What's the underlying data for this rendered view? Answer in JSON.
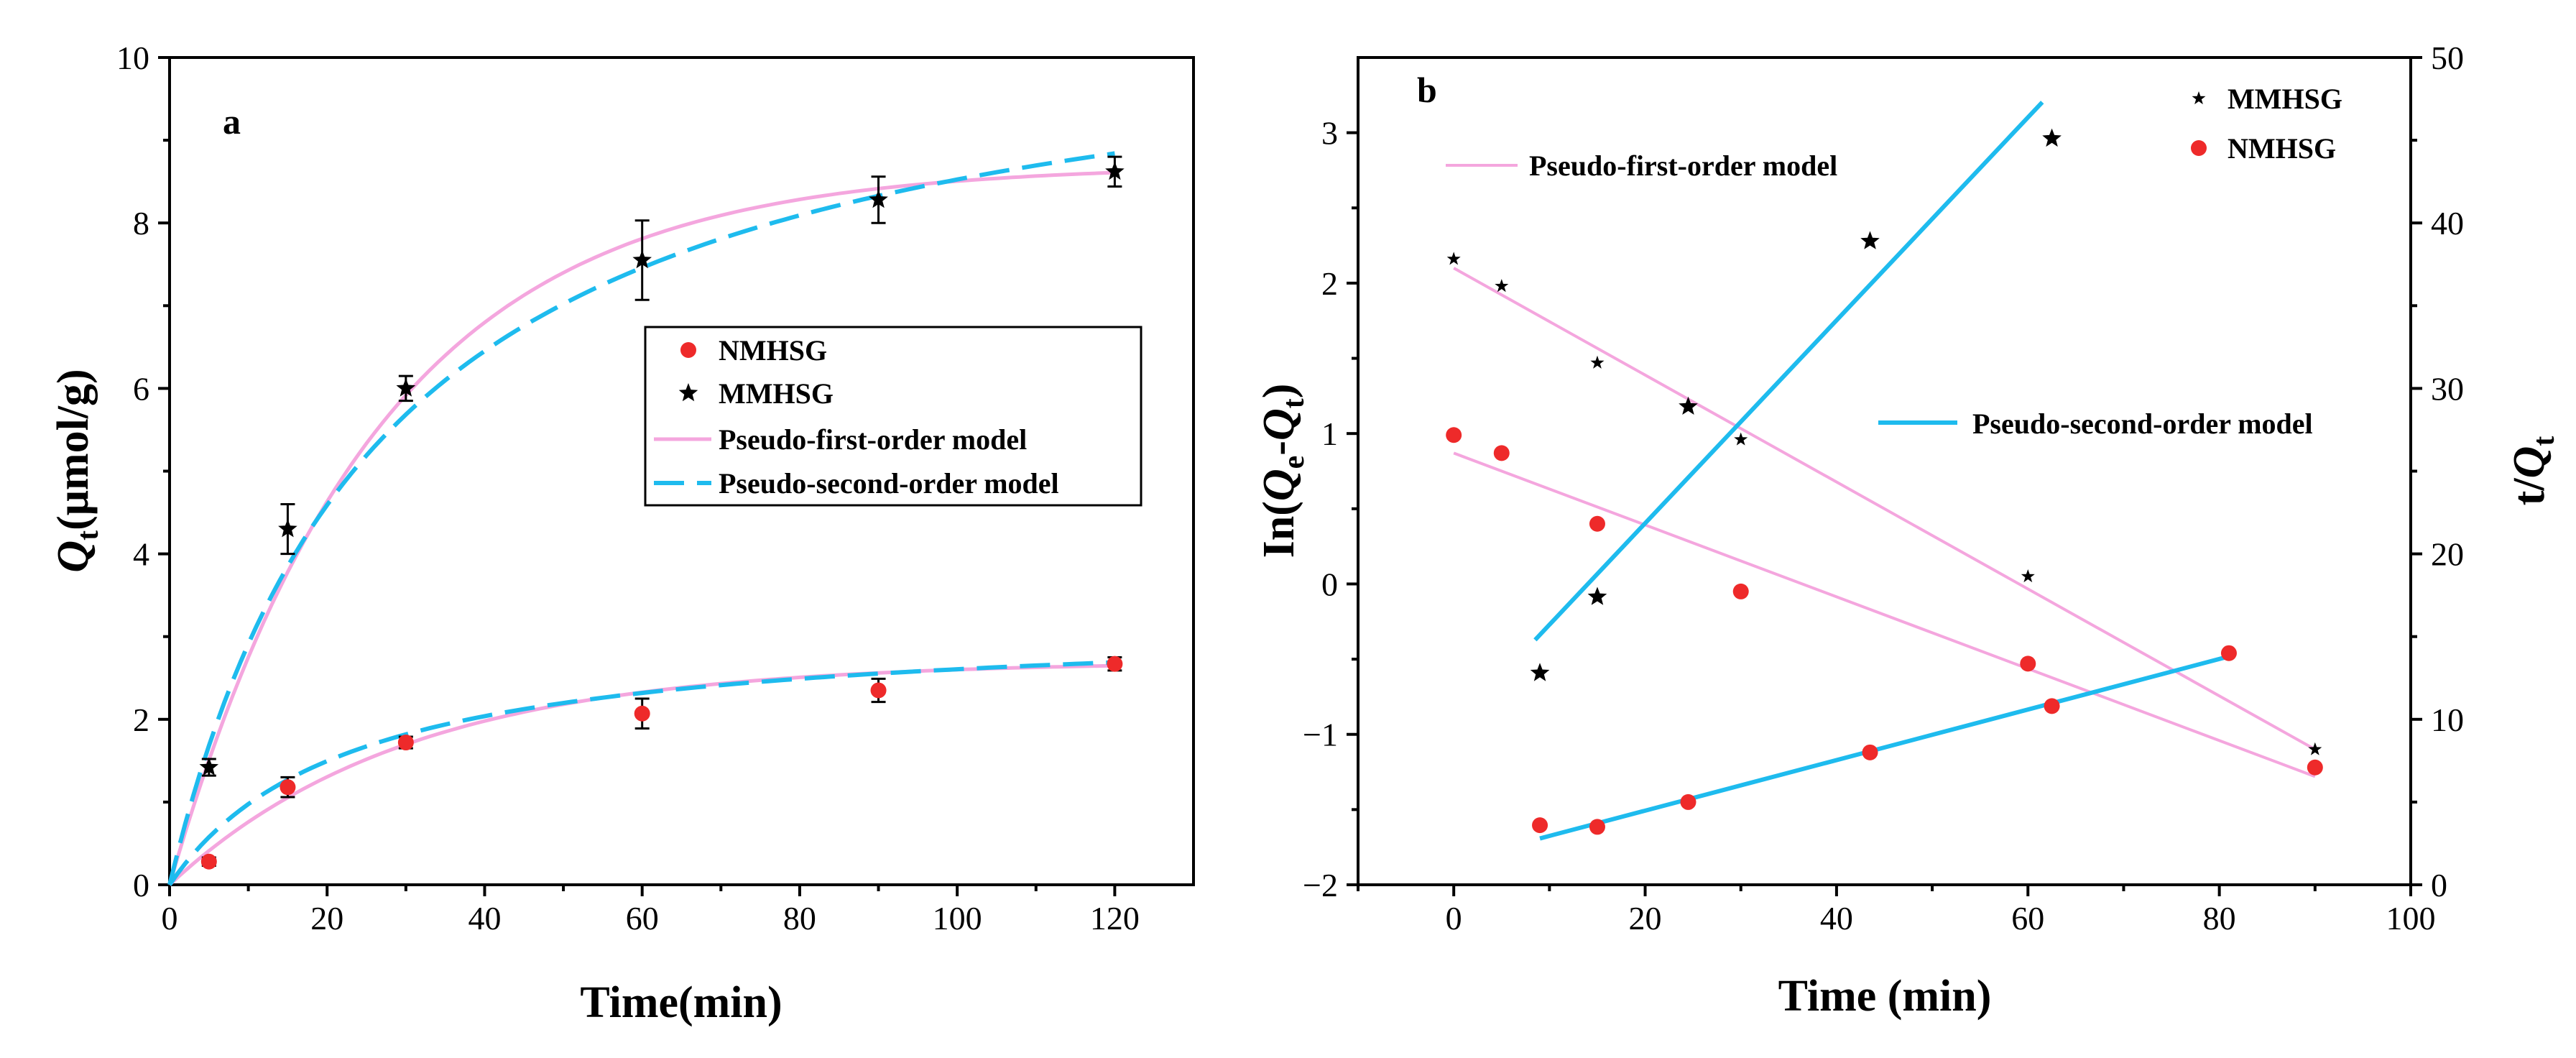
{
  "chart_data": [
    {
      "type": "scatter",
      "panel_label": "a",
      "xlabel": "Time(min)",
      "ylabel": "Qt(μmol/g)",
      "ylabel_main": "Q",
      "ylabel_sub": "t",
      "ylabel_rest": "(μmol/g)",
      "xlim": [
        0,
        130
      ],
      "ylim": [
        0,
        10
      ],
      "xticks": [
        0,
        20,
        40,
        60,
        80,
        100,
        120
      ],
      "yticks": [
        0,
        2,
        4,
        6,
        8,
        10
      ],
      "xtick_labels": [
        "0",
        "20",
        "40",
        "60",
        "80",
        "100",
        "120"
      ],
      "ytick_labels": [
        "0",
        "2",
        "4",
        "6",
        "8",
        "10"
      ],
      "legend_position": "center-right",
      "legend": [
        "NMHSG",
        "MMHSG",
        "Pseudo-first-order model",
        "Pseudo-second-order model"
      ],
      "series": [
        {
          "name": "NMHSG",
          "marker": "circle",
          "color": "#ee2a2a",
          "x": [
            5,
            15,
            30,
            60,
            90,
            120
          ],
          "y": [
            0.28,
            1.18,
            1.72,
            2.07,
            2.35,
            2.67
          ],
          "err": [
            0.05,
            0.12,
            0.07,
            0.18,
            0.14,
            0.08
          ]
        },
        {
          "name": "MMHSG",
          "marker": "star",
          "color": "#000000",
          "x": [
            5,
            15,
            30,
            60,
            90,
            120
          ],
          "y": [
            1.42,
            4.3,
            6.0,
            7.55,
            8.28,
            8.62
          ],
          "err": [
            0.1,
            0.3,
            0.15,
            0.48,
            0.28,
            0.18
          ]
        },
        {
          "name": "Pseudo-first-order model",
          "style": "solid",
          "color": "#f4a6de",
          "curves": [
            {
              "for": "MMHSG",
              "qe": 8.7,
              "k": 0.038
            },
            {
              "for": "NMHSG",
              "qe": 2.7,
              "k": 0.033
            }
          ]
        },
        {
          "name": "Pseudo-second-order model",
          "style": "dashed",
          "color": "#1ebbee",
          "curves": [
            {
              "for": "MMHSG",
              "qe": 10.85,
              "k": 0.00338
            },
            {
              "for": "NMHSG",
              "qe": 3.2,
              "k": 0.0137
            }
          ]
        }
      ]
    },
    {
      "type": "scatter",
      "panel_label": "b",
      "xlabel": "Time (min)",
      "ylabel_left": "In(Qe-Qt)",
      "ylabel_left_parts": {
        "prefix": "In(",
        "q1": "Q",
        "s1": "e",
        "dash": "-",
        "q2": "Q",
        "s2": "t",
        "suffix": ")"
      },
      "ylabel_right": "t/Qt",
      "ylabel_right_parts": {
        "prefix": "t/",
        "q": "Q",
        "s": "t"
      },
      "xlim": [
        -10,
        100
      ],
      "ylim_left": [
        -2,
        3.5
      ],
      "ylim_right": [
        0,
        50
      ],
      "xticks": [
        0,
        20,
        40,
        60,
        80,
        100
      ],
      "xtick_labels": [
        "0",
        "20",
        "40",
        "60",
        "80",
        "100"
      ],
      "yticks_left": [
        -2,
        -1,
        0,
        1,
        2,
        3
      ],
      "ytick_labels_left": [
        "−2",
        "−1",
        "0",
        "1",
        "2",
        "3"
      ],
      "yticks_right": [
        0,
        10,
        20,
        30,
        40,
        50
      ],
      "ytick_labels_right": [
        "0",
        "10",
        "20",
        "30",
        "40",
        "50"
      ],
      "legend": [
        "MMHSG",
        "NMHSG"
      ],
      "annotations": [
        "Pseudo-first-order model",
        "Pseudo-second-order model"
      ],
      "series": [
        {
          "name": "MMHSG ln(Qe-Qt)",
          "marker": "star-small",
          "axis": "left",
          "x": [
            0,
            5,
            15,
            30,
            60,
            90
          ],
          "y": [
            2.16,
            1.98,
            1.47,
            0.96,
            0.05,
            -1.1
          ]
        },
        {
          "name": "NMHSG ln(Qe-Qt)",
          "marker": "circle",
          "axis": "left",
          "x": [
            0,
            5,
            15,
            30,
            60,
            90
          ],
          "y": [
            0.99,
            0.87,
            0.4,
            -0.05,
            -0.53,
            -1.22
          ]
        },
        {
          "name": "MMHSG t/Qt",
          "marker": "star",
          "axis": "right",
          "x": [
            9,
            15,
            24.5,
            43.5,
            62.5
          ],
          "y": [
            12.8,
            17.4,
            28.9,
            38.9,
            45.1
          ]
        },
        {
          "name": "NMHSG t/Qt",
          "marker": "circle",
          "axis": "right",
          "x": [
            9,
            15,
            24.5,
            43.5,
            62.5,
            81
          ],
          "y": [
            3.6,
            3.5,
            5.0,
            8.0,
            10.8,
            14.0
          ]
        }
      ],
      "fit_lines": [
        {
          "name": "PFO MMHSG",
          "axis": "left",
          "style": "pink",
          "x": [
            0,
            90
          ],
          "y": [
            2.1,
            -1.1
          ]
        },
        {
          "name": "PFO NMHSG",
          "axis": "left",
          "style": "pink",
          "x": [
            0,
            90
          ],
          "y": [
            0.87,
            -1.28
          ]
        },
        {
          "name": "PSO MMHSG",
          "axis": "right",
          "style": "blue",
          "x": [
            8.5,
            61.5
          ],
          "y": [
            14.8,
            47.3
          ]
        },
        {
          "name": "PSO NMHSG",
          "axis": "right",
          "style": "blue",
          "x": [
            9,
            81
          ],
          "y": [
            2.8,
            13.8
          ]
        }
      ]
    }
  ]
}
